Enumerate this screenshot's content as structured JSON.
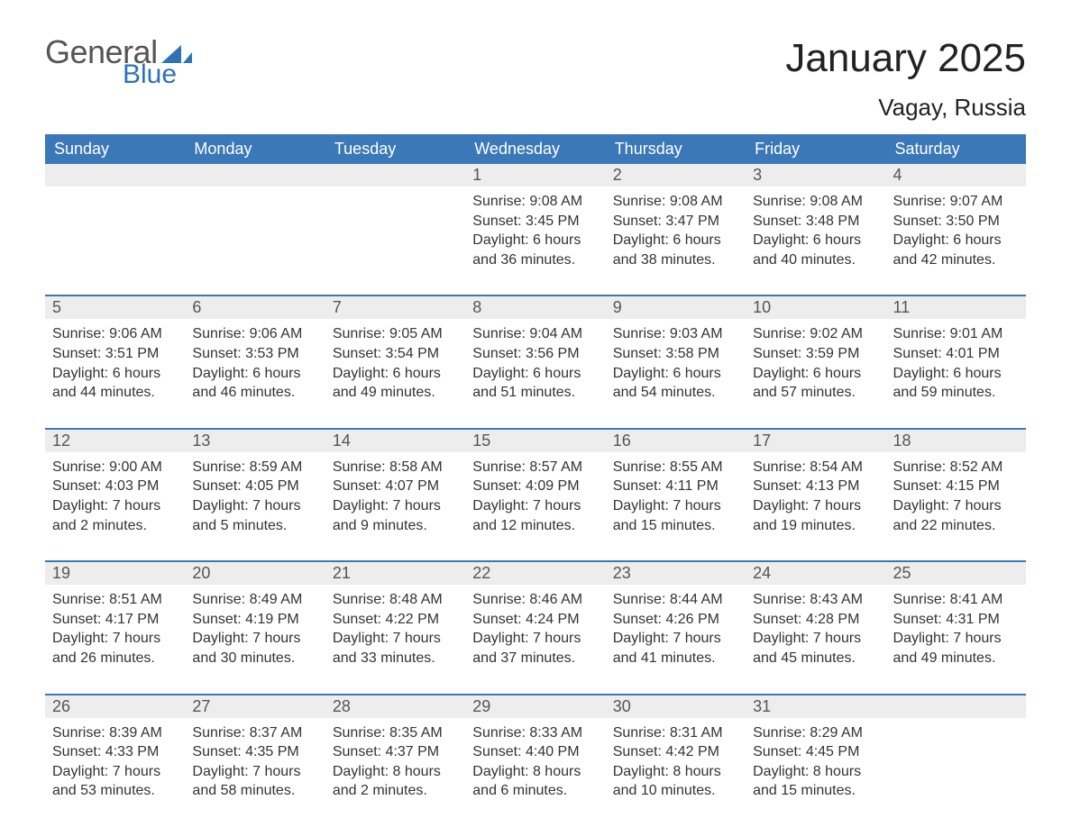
{
  "logo": {
    "word1": "General",
    "word2": "Blue",
    "tri_color": "#2f72b6"
  },
  "title": "January 2025",
  "location": "Vagay, Russia",
  "colors": {
    "header_bg": "#3b78b8",
    "header_text": "#ffffff",
    "row_divider": "#3b78b8",
    "daynum_bg": "#ededed",
    "body_text": "#333333",
    "page_bg": "#ffffff"
  },
  "day_headers": [
    "Sunday",
    "Monday",
    "Tuesday",
    "Wednesday",
    "Thursday",
    "Friday",
    "Saturday"
  ],
  "weeks": [
    [
      null,
      null,
      null,
      {
        "n": "1",
        "sunrise": "9:08 AM",
        "sunset": "3:45 PM",
        "daylight": "6 hours and 36 minutes."
      },
      {
        "n": "2",
        "sunrise": "9:08 AM",
        "sunset": "3:47 PM",
        "daylight": "6 hours and 38 minutes."
      },
      {
        "n": "3",
        "sunrise": "9:08 AM",
        "sunset": "3:48 PM",
        "daylight": "6 hours and 40 minutes."
      },
      {
        "n": "4",
        "sunrise": "9:07 AM",
        "sunset": "3:50 PM",
        "daylight": "6 hours and 42 minutes."
      }
    ],
    [
      {
        "n": "5",
        "sunrise": "9:06 AM",
        "sunset": "3:51 PM",
        "daylight": "6 hours and 44 minutes."
      },
      {
        "n": "6",
        "sunrise": "9:06 AM",
        "sunset": "3:53 PM",
        "daylight": "6 hours and 46 minutes."
      },
      {
        "n": "7",
        "sunrise": "9:05 AM",
        "sunset": "3:54 PM",
        "daylight": "6 hours and 49 minutes."
      },
      {
        "n": "8",
        "sunrise": "9:04 AM",
        "sunset": "3:56 PM",
        "daylight": "6 hours and 51 minutes."
      },
      {
        "n": "9",
        "sunrise": "9:03 AM",
        "sunset": "3:58 PM",
        "daylight": "6 hours and 54 minutes."
      },
      {
        "n": "10",
        "sunrise": "9:02 AM",
        "sunset": "3:59 PM",
        "daylight": "6 hours and 57 minutes."
      },
      {
        "n": "11",
        "sunrise": "9:01 AM",
        "sunset": "4:01 PM",
        "daylight": "6 hours and 59 minutes."
      }
    ],
    [
      {
        "n": "12",
        "sunrise": "9:00 AM",
        "sunset": "4:03 PM",
        "daylight": "7 hours and 2 minutes."
      },
      {
        "n": "13",
        "sunrise": "8:59 AM",
        "sunset": "4:05 PM",
        "daylight": "7 hours and 5 minutes."
      },
      {
        "n": "14",
        "sunrise": "8:58 AM",
        "sunset": "4:07 PM",
        "daylight": "7 hours and 9 minutes."
      },
      {
        "n": "15",
        "sunrise": "8:57 AM",
        "sunset": "4:09 PM",
        "daylight": "7 hours and 12 minutes."
      },
      {
        "n": "16",
        "sunrise": "8:55 AM",
        "sunset": "4:11 PM",
        "daylight": "7 hours and 15 minutes."
      },
      {
        "n": "17",
        "sunrise": "8:54 AM",
        "sunset": "4:13 PM",
        "daylight": "7 hours and 19 minutes."
      },
      {
        "n": "18",
        "sunrise": "8:52 AM",
        "sunset": "4:15 PM",
        "daylight": "7 hours and 22 minutes."
      }
    ],
    [
      {
        "n": "19",
        "sunrise": "8:51 AM",
        "sunset": "4:17 PM",
        "daylight": "7 hours and 26 minutes."
      },
      {
        "n": "20",
        "sunrise": "8:49 AM",
        "sunset": "4:19 PM",
        "daylight": "7 hours and 30 minutes."
      },
      {
        "n": "21",
        "sunrise": "8:48 AM",
        "sunset": "4:22 PM",
        "daylight": "7 hours and 33 minutes."
      },
      {
        "n": "22",
        "sunrise": "8:46 AM",
        "sunset": "4:24 PM",
        "daylight": "7 hours and 37 minutes."
      },
      {
        "n": "23",
        "sunrise": "8:44 AM",
        "sunset": "4:26 PM",
        "daylight": "7 hours and 41 minutes."
      },
      {
        "n": "24",
        "sunrise": "8:43 AM",
        "sunset": "4:28 PM",
        "daylight": "7 hours and 45 minutes."
      },
      {
        "n": "25",
        "sunrise": "8:41 AM",
        "sunset": "4:31 PM",
        "daylight": "7 hours and 49 minutes."
      }
    ],
    [
      {
        "n": "26",
        "sunrise": "8:39 AM",
        "sunset": "4:33 PM",
        "daylight": "7 hours and 53 minutes."
      },
      {
        "n": "27",
        "sunrise": "8:37 AM",
        "sunset": "4:35 PM",
        "daylight": "7 hours and 58 minutes."
      },
      {
        "n": "28",
        "sunrise": "8:35 AM",
        "sunset": "4:37 PM",
        "daylight": "8 hours and 2 minutes."
      },
      {
        "n": "29",
        "sunrise": "8:33 AM",
        "sunset": "4:40 PM",
        "daylight": "8 hours and 6 minutes."
      },
      {
        "n": "30",
        "sunrise": "8:31 AM",
        "sunset": "4:42 PM",
        "daylight": "8 hours and 10 minutes."
      },
      {
        "n": "31",
        "sunrise": "8:29 AM",
        "sunset": "4:45 PM",
        "daylight": "8 hours and 15 minutes."
      },
      null
    ]
  ],
  "labels": {
    "sunrise": "Sunrise: ",
    "sunset": "Sunset: ",
    "daylight": "Daylight: "
  }
}
